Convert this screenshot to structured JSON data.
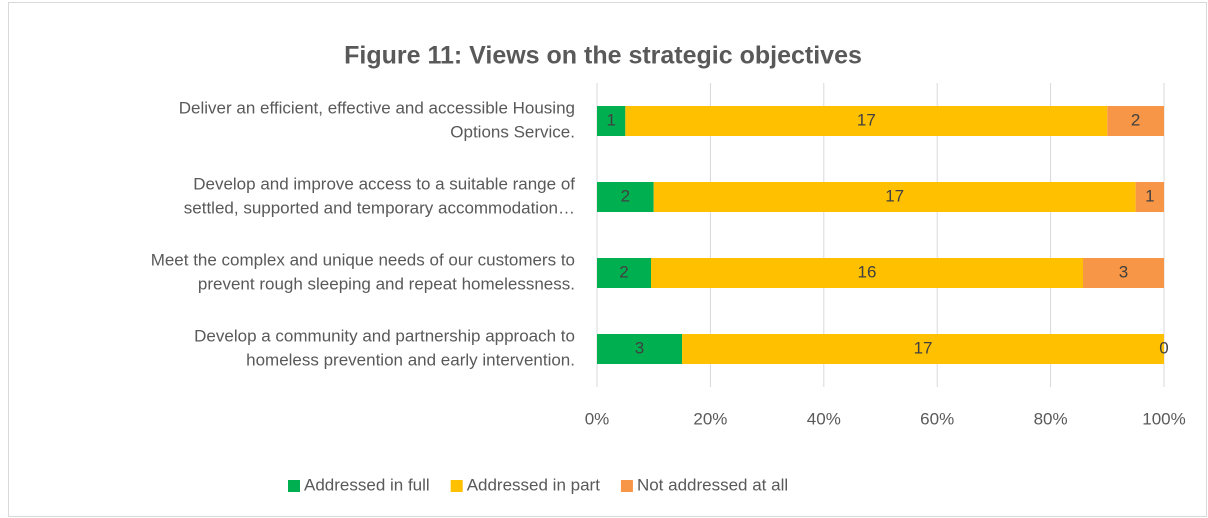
{
  "chart_data": {
    "type": "bar",
    "orientation": "horizontal",
    "stacked": "percent",
    "title": "Figure 11: Views on the strategic objectives",
    "categories": [
      [
        "Deliver an efficient, effective and accessible Housing",
        "Options Service."
      ],
      [
        "Develop and improve access to a suitable range of",
        "settled, supported and temporary accommodation…"
      ],
      [
        "Meet the complex and unique needs of our customers to",
        "prevent rough sleeping and repeat homelessness."
      ],
      [
        "Develop a community and partnership approach to",
        "homeless prevention and early intervention."
      ]
    ],
    "series": [
      {
        "name": "Addressed in full",
        "color": "#00b050",
        "values": [
          1,
          2,
          2,
          3
        ]
      },
      {
        "name": "Addressed in part",
        "color": "#ffc000",
        "values": [
          17,
          17,
          16,
          17
        ]
      },
      {
        "name": "Not addressed at all",
        "color": "#f79646",
        "values": [
          2,
          1,
          3,
          0
        ]
      }
    ],
    "xlim": [
      0,
      100
    ],
    "xticks": [
      {
        "value": 0,
        "label": "0%"
      },
      {
        "value": 20,
        "label": "20%"
      },
      {
        "value": 40,
        "label": "40%"
      },
      {
        "value": 60,
        "label": "60%"
      },
      {
        "value": 80,
        "label": "80%"
      },
      {
        "value": 100,
        "label": "100%"
      }
    ],
    "grid": true,
    "legend": "bottom"
  }
}
